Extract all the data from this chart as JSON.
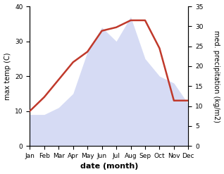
{
  "months": [
    "Jan",
    "Feb",
    "Mar",
    "Apr",
    "May",
    "Jun",
    "Jul",
    "Aug",
    "Sep",
    "Oct",
    "Nov",
    "Dec"
  ],
  "temperature": [
    10,
    14,
    19,
    24,
    27,
    33,
    34,
    36,
    36,
    28,
    13,
    13
  ],
  "precipitation": [
    9,
    9,
    11,
    15,
    27,
    34,
    30,
    37,
    25,
    20,
    18,
    12
  ],
  "temp_color": "#c0392b",
  "precip_fill_color": "#c5cdf0",
  "ylim_left": [
    0,
    40
  ],
  "ylim_right": [
    0,
    35
  ],
  "yticks_left": [
    0,
    10,
    20,
    30,
    40
  ],
  "yticks_right": [
    0,
    5,
    10,
    15,
    20,
    25,
    30,
    35
  ],
  "xlabel": "date (month)",
  "ylabel_left": "max temp (C)",
  "ylabel_right": "med. precipitation (kg/m2)",
  "background_color": "#ffffff",
  "temp_linewidth": 1.8,
  "precip_alpha": 0.7
}
